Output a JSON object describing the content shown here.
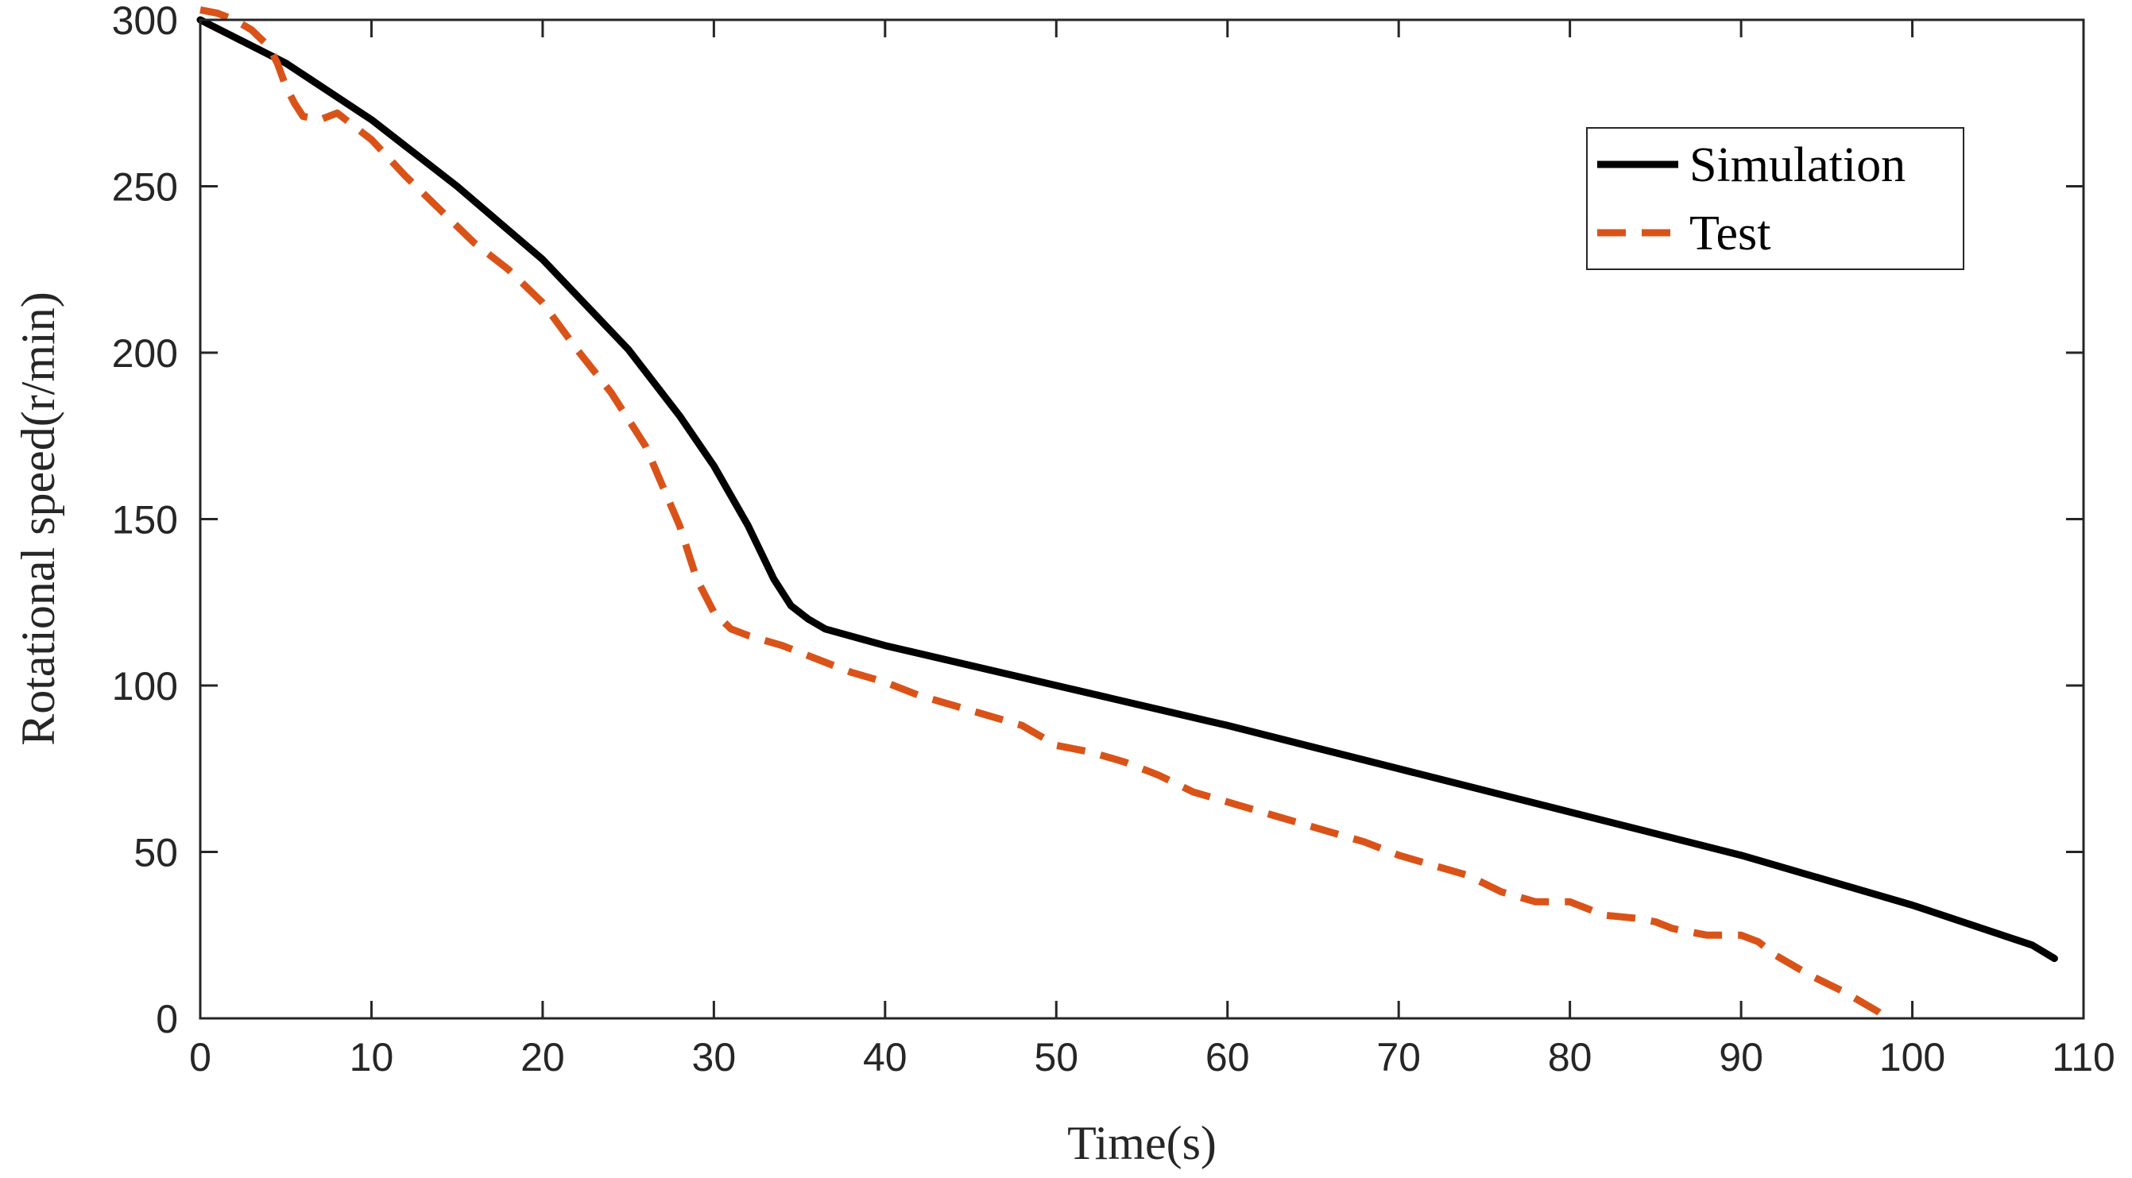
{
  "chart_data": {
    "type": "line",
    "title": "",
    "xlabel": "Time(s)",
    "ylabel": "Rotational speed(r/min)",
    "xlim": [
      0,
      110
    ],
    "ylim": [
      0,
      300
    ],
    "xticks": [
      0,
      10,
      20,
      30,
      40,
      50,
      60,
      70,
      80,
      90,
      100,
      110
    ],
    "yticks": [
      0,
      50,
      100,
      150,
      200,
      250,
      300
    ],
    "xtick_labels": [
      "0",
      "10",
      "20",
      "30",
      "40",
      "50",
      "60",
      "70",
      "80",
      "90",
      "100",
      "110"
    ],
    "ytick_labels": [
      "0",
      "50",
      "100",
      "150",
      "200",
      "250",
      "300"
    ],
    "grid": false,
    "legend_position": "top-right",
    "series": [
      {
        "name": "Simulation",
        "color": "#000000",
        "style": "solid",
        "x": [
          0,
          5,
          10,
          15,
          20,
          25,
          28,
          30,
          32,
          33.5,
          34.5,
          35.5,
          36.5,
          40,
          50,
          60,
          70,
          80,
          90,
          100,
          107,
          108.3
        ],
        "y": [
          300,
          287,
          270,
          250,
          228,
          201,
          181,
          166,
          148,
          132,
          124,
          120,
          117,
          112,
          100,
          88,
          75,
          62,
          49,
          34,
          22,
          18
        ]
      },
      {
        "name": "Test",
        "color": "#D95319",
        "style": "dashed",
        "x": [
          0,
          1,
          2,
          3,
          4,
          4.5,
          5,
          5.5,
          6,
          7,
          8,
          9,
          10,
          12,
          14,
          16,
          18,
          20,
          22,
          24,
          26,
          27,
          28,
          29,
          30,
          31,
          32,
          34,
          36,
          38,
          40,
          42,
          44,
          46,
          48,
          50,
          52,
          54,
          56,
          58,
          60,
          62,
          64,
          66,
          68,
          70,
          72,
          74,
          76,
          78,
          80,
          82,
          84,
          85,
          86,
          87,
          88,
          89,
          90,
          91,
          92,
          94,
          96,
          98,
          98.5
        ],
        "y": [
          303,
          302,
          300,
          297,
          292,
          287,
          280,
          275,
          271,
          270,
          272,
          268,
          264,
          253,
          243,
          233,
          225,
          215,
          201,
          188,
          172,
          160,
          148,
          132,
          122,
          117,
          115,
          112,
          108,
          104,
          101,
          97,
          94,
          91,
          88,
          82,
          80,
          77,
          73,
          68,
          65,
          62,
          59,
          56,
          53,
          49,
          46,
          43,
          38,
          35,
          35,
          31,
          30,
          29,
          27,
          26,
          25,
          25,
          25,
          23,
          19,
          13,
          8,
          2,
          0
        ]
      }
    ]
  }
}
